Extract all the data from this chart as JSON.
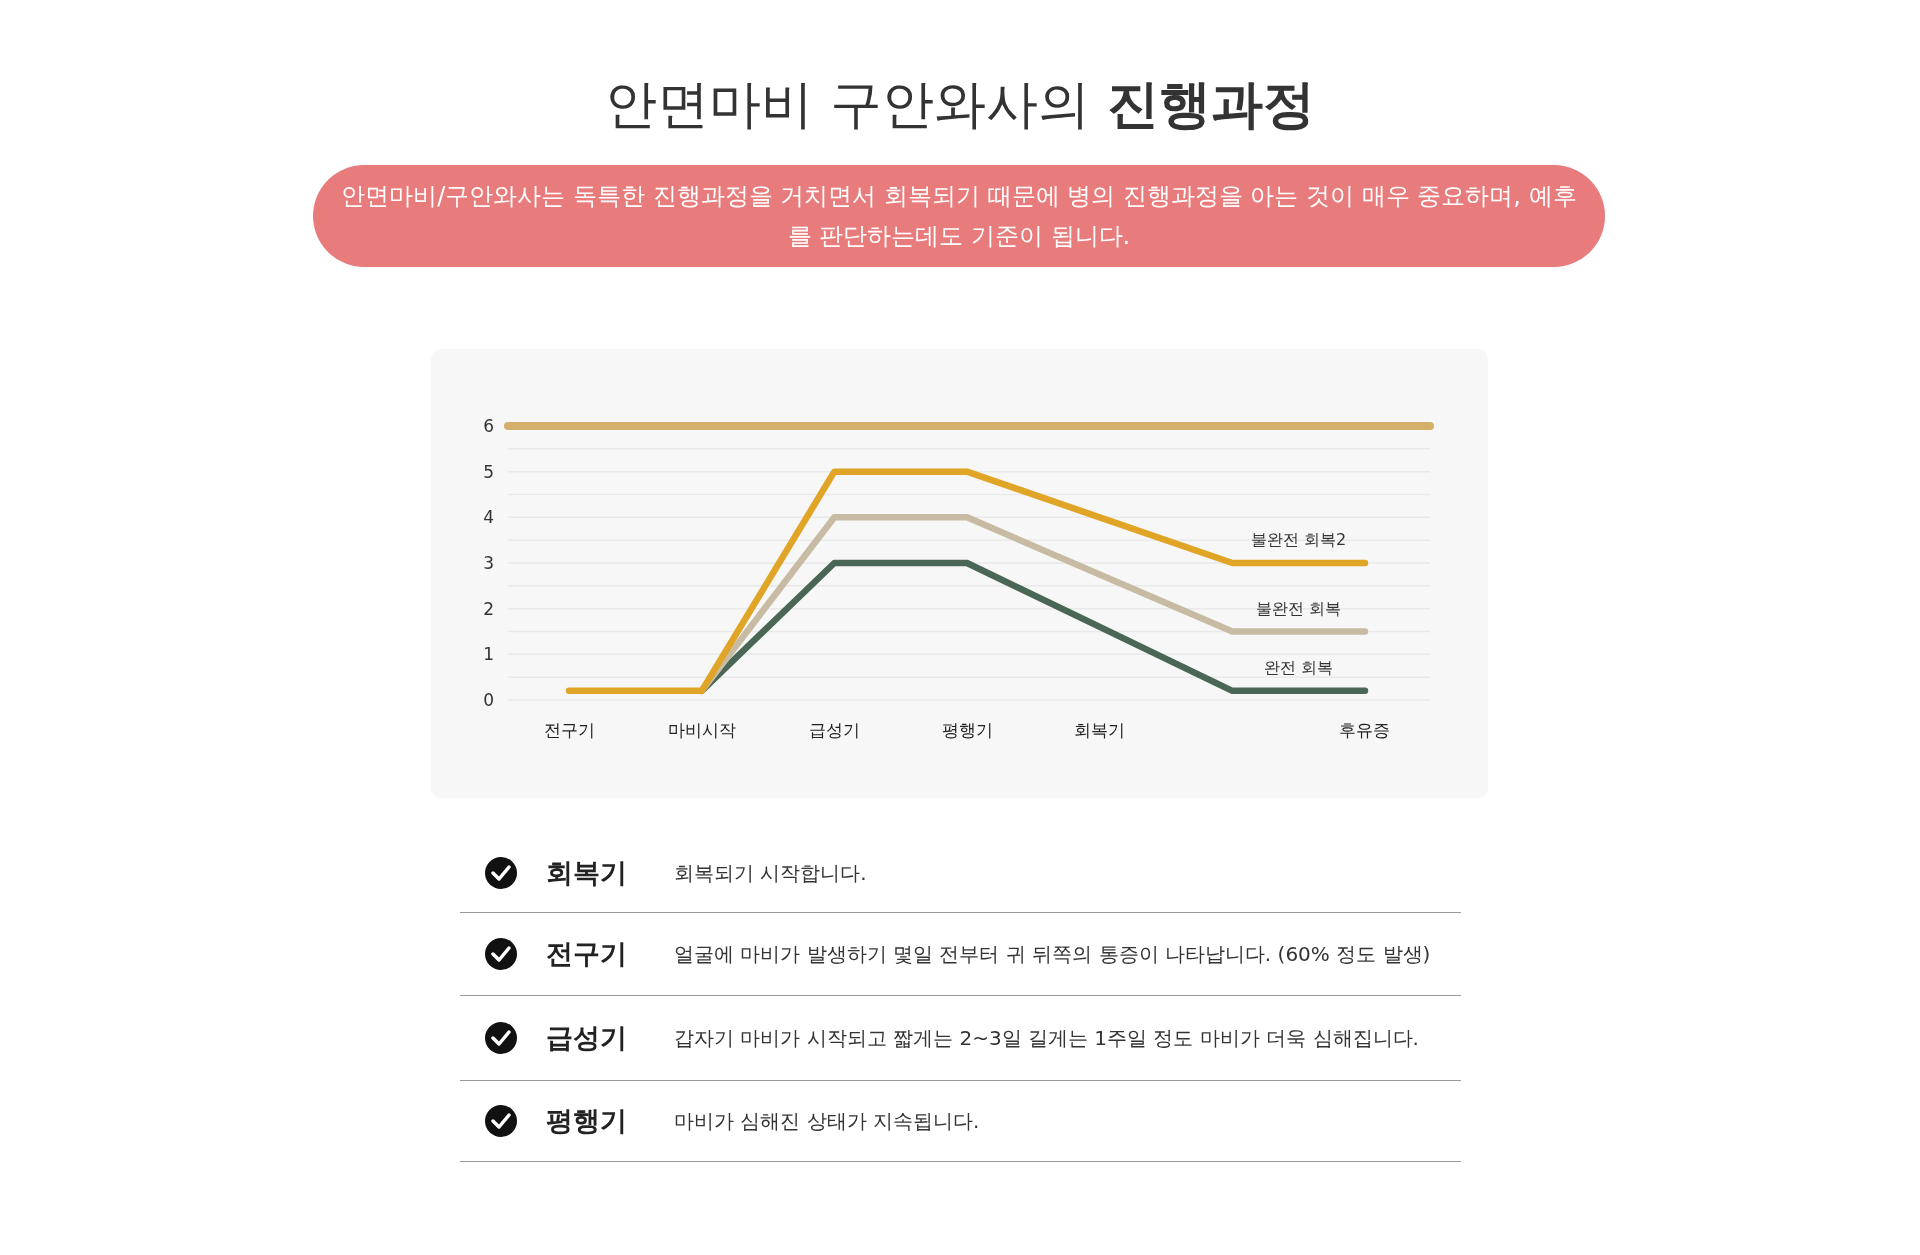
{
  "chart_data": [
    {
      "type": "line",
      "title": "안면마비 구안와사의 진행과정",
      "subtitle": "안면마비/구안와사는 독특한 진행과정을 거치면서 회복되기 때문에 병의 진행과정을 아는 것이 매우 중요하며, 예후를 판단하는데도 기준이 됩니다.",
      "categories": [
        "전구기",
        "마비시작",
        "급성기",
        "평행기",
        "회복기",
        null,
        "후유증"
      ],
      "ylim": [
        0,
        6
      ],
      "yticks": [
        0,
        {
          "value": 0.5,
          "label": null
        },
        1,
        {
          "value": 1.5,
          "label": null
        },
        2,
        {
          "value": 2.5,
          "label": null
        },
        3,
        {
          "value": 3.5,
          "label": null
        },
        4,
        {
          "value": 4.5,
          "label": null
        },
        5,
        {
          "value": 5.5,
          "label": null
        },
        6
      ],
      "grid": "y",
      "legend": false,
      "marker": "none",
      "line_style": "solid",
      "ref_lines": [
        {
          "axis": "y",
          "value": 6,
          "color": "#d4b06a"
        }
      ],
      "series": [
        {
          "name": "불완전 회복2",
          "color": "#e0a526",
          "values": [
            0.2,
            0.2,
            5,
            5,
            4,
            3,
            3
          ]
        },
        {
          "name": "불완전 회복",
          "color": "#c8bba4",
          "values": [
            null,
            0.2,
            4,
            4,
            2.75,
            1.5,
            1.5
          ]
        },
        {
          "name": "완전 회복",
          "color": "#4a6656",
          "values": [
            null,
            0.2,
            3,
            3,
            1.6,
            0.2,
            0.2
          ]
        }
      ]
    },
    {
      "type": "other",
      "categories": [
        "회복기",
        "전구기",
        "급성기",
        "평행기"
      ],
      "annotations": [
        "회복되기 시작합니다.",
        "얼굴에 마비가 발생하기 몇일 전부터 귀 뒤쪽의 통증이 나타납니다. (60% 정도 발생)",
        "갑자기 마비가 시작되고 짧게는 2~3일 길게는 1주일 정도 마비가 더욱 심해집니다.",
        "마비가 심해진 상태가 지속됩니다."
      ]
    }
  ]
}
